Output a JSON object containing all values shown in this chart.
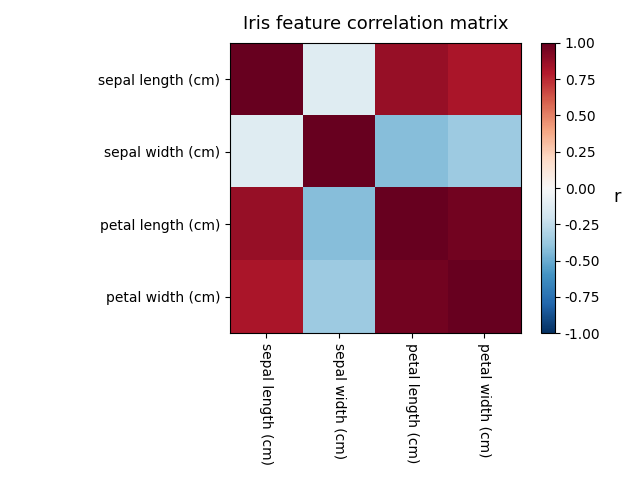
{
  "title": "Iris feature correlation matrix",
  "features": [
    "sepal length (cm)",
    "sepal width (cm)",
    "petal length (cm)",
    "petal width (cm)"
  ],
  "correlation_matrix": [
    [
      1.0,
      -0.1176,
      0.8718,
      0.8179
    ],
    [
      -0.1176,
      1.0,
      -0.4284,
      -0.3661
    ],
    [
      0.8718,
      -0.4284,
      1.0,
      0.9629
    ],
    [
      0.8179,
      -0.3661,
      0.9629,
      1.0
    ]
  ],
  "cmap": "RdBu_r",
  "vmin": -1.0,
  "vmax": 1.0,
  "colorbar_label": "r",
  "colorbar_ticks": [
    1.0,
    0.75,
    0.5,
    0.25,
    0.0,
    -0.25,
    -0.5,
    -0.75,
    -1.0
  ],
  "title_fontsize": 13,
  "tick_fontsize": 10,
  "colorbar_label_fontsize": 13
}
